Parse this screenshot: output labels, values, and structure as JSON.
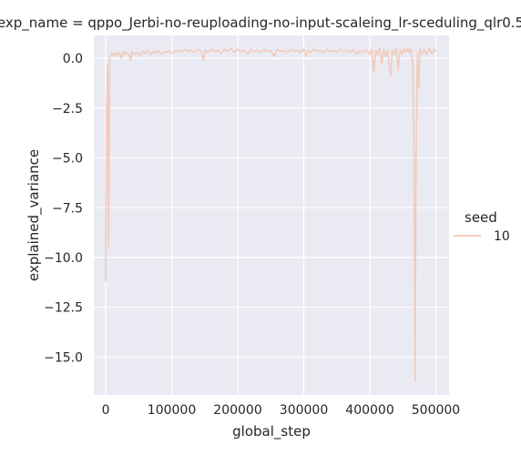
{
  "chart_data": {
    "type": "line",
    "title": "exp_name = qppo_Jerbi-no-reuploading-no-input-scaleing_lr-sceduling_qlr0.5",
    "xlabel": "global_step",
    "ylabel": "explained_variance",
    "xlim": [
      -18000,
      520000
    ],
    "ylim": [
      -16.9,
      1.15
    ],
    "x_ticks": [
      0,
      100000,
      200000,
      300000,
      400000,
      500000
    ],
    "x_tick_labels": [
      "0",
      "100000",
      "200000",
      "300000",
      "400000",
      "500000"
    ],
    "y_ticks": [
      0.0,
      -2.5,
      -5.0,
      -7.5,
      -10.0,
      -12.5,
      -15.0
    ],
    "y_tick_labels": [
      "0.0",
      "−2.5",
      "−5.0",
      "−7.5",
      "−10.0",
      "−12.5",
      "−15.0"
    ],
    "grid": true,
    "legend": {
      "title": "seed",
      "position": "right",
      "entries": [
        {
          "label": "10",
          "color": "#f1cbbd"
        }
      ]
    },
    "series": [
      {
        "name": "10",
        "color": "#f1cbbd",
        "points": [
          [
            0,
            -11.2
          ],
          [
            1500,
            -2.3
          ],
          [
            3000,
            -0.3
          ],
          [
            4500,
            -9.5
          ],
          [
            6000,
            0.1
          ],
          [
            8000,
            0.2
          ],
          [
            10000,
            0.25
          ],
          [
            12000,
            0.1
          ],
          [
            15000,
            0.3
          ],
          [
            18000,
            0.15
          ],
          [
            21000,
            0.3
          ],
          [
            24000,
            0.0
          ],
          [
            27000,
            0.35
          ],
          [
            30000,
            0.2
          ],
          [
            33000,
            0.3
          ],
          [
            36000,
            0.1
          ],
          [
            38000,
            -0.1
          ],
          [
            40000,
            0.35
          ],
          [
            44000,
            0.2
          ],
          [
            48000,
            0.3
          ],
          [
            52000,
            0.15
          ],
          [
            56000,
            0.35
          ],
          [
            60000,
            0.25
          ],
          [
            64000,
            0.4
          ],
          [
            68000,
            0.2
          ],
          [
            72000,
            0.35
          ],
          [
            76000,
            0.25
          ],
          [
            80000,
            0.4
          ],
          [
            84000,
            0.2
          ],
          [
            88000,
            0.35
          ],
          [
            92000,
            0.3
          ],
          [
            96000,
            0.4
          ],
          [
            100000,
            0.25
          ],
          [
            105000,
            0.35
          ],
          [
            110000,
            0.4
          ],
          [
            115000,
            0.3
          ],
          [
            120000,
            0.45
          ],
          [
            125000,
            0.35
          ],
          [
            130000,
            0.4
          ],
          [
            135000,
            0.3
          ],
          [
            140000,
            0.45
          ],
          [
            145000,
            0.35
          ],
          [
            148000,
            -0.1
          ],
          [
            151000,
            0.4
          ],
          [
            155000,
            0.3
          ],
          [
            160000,
            0.45
          ],
          [
            165000,
            0.35
          ],
          [
            170000,
            0.4
          ],
          [
            175000,
            0.25
          ],
          [
            180000,
            0.45
          ],
          [
            185000,
            0.35
          ],
          [
            190000,
            0.5
          ],
          [
            195000,
            0.3
          ],
          [
            200000,
            0.45
          ],
          [
            205000,
            0.35
          ],
          [
            210000,
            0.4
          ],
          [
            215000,
            0.2
          ],
          [
            220000,
            0.45
          ],
          [
            225000,
            0.35
          ],
          [
            230000,
            0.4
          ],
          [
            235000,
            0.3
          ],
          [
            240000,
            0.45
          ],
          [
            245000,
            0.35
          ],
          [
            250000,
            0.4
          ],
          [
            255000,
            0.1
          ],
          [
            260000,
            0.45
          ],
          [
            265000,
            0.35
          ],
          [
            270000,
            0.4
          ],
          [
            275000,
            0.3
          ],
          [
            280000,
            0.45
          ],
          [
            285000,
            0.35
          ],
          [
            290000,
            0.4
          ],
          [
            295000,
            0.3
          ],
          [
            300000,
            0.45
          ],
          [
            303000,
            0.1
          ],
          [
            306000,
            0.4
          ],
          [
            310000,
            0.3
          ],
          [
            315000,
            0.45
          ],
          [
            320000,
            0.35
          ],
          [
            325000,
            0.4
          ],
          [
            330000,
            0.3
          ],
          [
            335000,
            0.45
          ],
          [
            340000,
            0.35
          ],
          [
            345000,
            0.4
          ],
          [
            350000,
            0.3
          ],
          [
            355000,
            0.45
          ],
          [
            360000,
            0.35
          ],
          [
            365000,
            0.4
          ],
          [
            370000,
            0.3
          ],
          [
            375000,
            0.45
          ],
          [
            380000,
            0.2
          ],
          [
            385000,
            0.4
          ],
          [
            390000,
            0.3
          ],
          [
            395000,
            0.45
          ],
          [
            400000,
            0.2
          ],
          [
            403000,
            0.45
          ],
          [
            406000,
            -0.7
          ],
          [
            409000,
            0.4
          ],
          [
            412000,
            0.2
          ],
          [
            415000,
            0.5
          ],
          [
            418000,
            -0.3
          ],
          [
            421000,
            0.45
          ],
          [
            424000,
            0.1
          ],
          [
            427000,
            0.4
          ],
          [
            430000,
            -0.5
          ],
          [
            432000,
            -0.9
          ],
          [
            434000,
            0.4
          ],
          [
            437000,
            0.2
          ],
          [
            440000,
            0.5
          ],
          [
            443000,
            -0.6
          ],
          [
            446000,
            0.45
          ],
          [
            449000,
            0.2
          ],
          [
            452000,
            0.5
          ],
          [
            455000,
            0.3
          ],
          [
            458000,
            0.5
          ],
          [
            460000,
            0.3
          ],
          [
            462000,
            0.45
          ],
          [
            465000,
            -0.2
          ],
          [
            467000,
            -5.0
          ],
          [
            468500,
            -16.2
          ],
          [
            470000,
            -5.0
          ],
          [
            472000,
            0.3
          ],
          [
            474000,
            -1.5
          ],
          [
            476000,
            0.5
          ],
          [
            479000,
            0.2
          ],
          [
            482000,
            0.45
          ],
          [
            486000,
            0.2
          ],
          [
            490000,
            0.5
          ],
          [
            494000,
            0.25
          ],
          [
            498000,
            0.45
          ],
          [
            500000,
            0.3
          ]
        ]
      }
    ]
  }
}
